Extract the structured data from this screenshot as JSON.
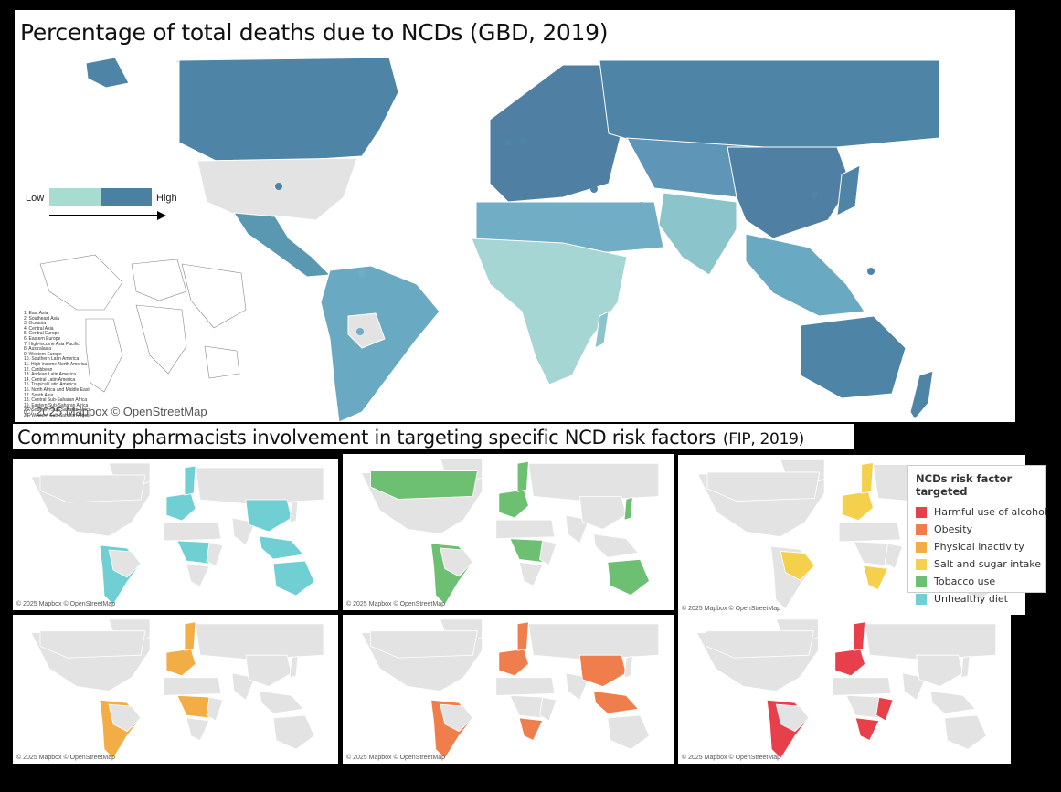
{
  "top_map": {
    "title": "Percentage of total deaths due to NCDs (GBD, 2019)",
    "legend": {
      "low": "Low",
      "high": "High",
      "colors": [
        "#a8dcd0",
        "#4a80a2"
      ]
    },
    "copyright": "© 2025 Mapbox © OpenStreetMap",
    "region_key": [
      "1. East Asia",
      "2. Southeast Asia",
      "3. Oceania",
      "4. Central Asia",
      "5. Central Europe",
      "6. Eastern Europe",
      "7. High-income Asia Pacific",
      "8. Australasia",
      "9. Western Europe",
      "10. Southern Latin America",
      "11. High-income North America",
      "12. Caribbean",
      "13. Andean Latin America",
      "14. Central Latin America",
      "15. Tropical Latin America",
      "16. North Africa and Middle East",
      "17. South Asia",
      "18. Central Sub-Saharan Africa",
      "19. Eastern Sub-Saharan Africa",
      "20. Southern Sub-Saharan Africa",
      "21. Western Sub-Saharan Africa"
    ]
  },
  "subtitle": {
    "text": "Community pharmacists involvement in targeting specific NCD risk factors",
    "source": "(FIP, 2019)"
  },
  "small_map_copyright": "© 2025 Mapbox © OpenStreetMap",
  "risk_legend": {
    "title": "NCDs risk factor targeted",
    "items": [
      {
        "label": "Harmful use of alcohol",
        "color": "#e8404a",
        "icon": "swatch-square"
      },
      {
        "label": "Obesity",
        "color": "#f07e4c",
        "icon": "swatch-square"
      },
      {
        "label": "Physical inactivity",
        "color": "#f2ad46",
        "icon": "swatch-square"
      },
      {
        "label": "Salt and sugar intake",
        "color": "#f4d04c",
        "icon": "swatch-square"
      },
      {
        "label": "Tobacco use",
        "color": "#6dbf72",
        "icon": "swatch-square"
      },
      {
        "label": "Unhealthy diet",
        "color": "#6fcfd2",
        "icon": "swatch-square"
      }
    ]
  },
  "risk_maps": [
    {
      "factor": "Unhealthy diet",
      "color": "#6fcfd2",
      "highlighted": [
        "South America",
        "Western Europe",
        "Scandinavia",
        "China",
        "Southeast Asia",
        "Australia",
        "Central Africa"
      ]
    },
    {
      "factor": "Tobacco use",
      "color": "#6dbf72",
      "highlighted": [
        "Canada",
        "Scandinavia",
        "Western Europe",
        "South America",
        "Japan",
        "Central Africa",
        "Australia"
      ]
    },
    {
      "factor": "Salt and sugar intake",
      "color": "#f4d04c",
      "highlighted": [
        "Scandinavia",
        "Western Europe",
        "Brazil",
        "Southern Africa"
      ]
    },
    {
      "factor": "Physical inactivity",
      "color": "#f2ad46",
      "highlighted": [
        "Scandinavia",
        "Western Europe",
        "South America",
        "Central Africa"
      ]
    },
    {
      "factor": "Obesity",
      "color": "#f07e4c",
      "highlighted": [
        "Scandinavia",
        "Western Europe",
        "China",
        "Southeast Asia",
        "South America",
        "Southern Africa"
      ]
    },
    {
      "factor": "Harmful use of alcohol",
      "color": "#e8404a",
      "highlighted": [
        "Scandinavia",
        "Western Europe",
        "South America",
        "East Africa",
        "Southern Africa"
      ]
    }
  ]
}
